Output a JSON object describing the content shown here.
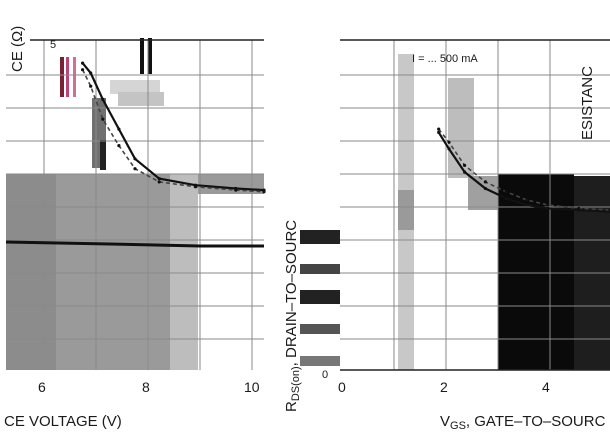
{
  "chart_data": [
    {
      "type": "line",
      "title": "",
      "xlabel": "CE VOLTAGE (V)",
      "ylabel": "CE (Ω)",
      "x_ticks": [
        "6",
        "8",
        "10"
      ],
      "y_tick_top": "5",
      "xlim": [
        4.8,
        11.2
      ],
      "ylim": [
        0,
        1
      ],
      "grid": true,
      "series": [
        {
          "x": [
            6.7,
            6.9,
            7.2,
            7.6,
            8.0,
            8.6,
            9.5,
            10.5,
            11.2
          ],
          "y": [
            0.93,
            0.9,
            0.82,
            0.73,
            0.64,
            0.58,
            0.56,
            0.55,
            0.545
          ]
        },
        {
          "x": [
            6.7,
            6.9,
            7.2,
            7.6,
            8.0,
            8.6,
            9.5,
            10.5,
            11.2
          ],
          "y": [
            0.91,
            0.86,
            0.76,
            0.68,
            0.61,
            0.57,
            0.555,
            0.545,
            0.54
          ]
        }
      ]
    },
    {
      "type": "line",
      "title": "",
      "xlabel": "V",
      "xlabel_sub": "GS",
      "xlabel_rest": ", GATE–TO–SOURC",
      "ylabel_main": "R",
      "ylabel_sub": "DS(on)",
      "ylabel_rest": ", DRAIN–TO–SOURC",
      "right_label": "ESISTANC",
      "annotation": "I  = ... 500 mA",
      "x_ticks": [
        "0",
        "2",
        "4"
      ],
      "y_tick_bottom": "0",
      "xlim": [
        0,
        5.2
      ],
      "ylim": [
        0,
        1
      ],
      "grid": true,
      "series": [
        {
          "x": [
            1.9,
            2.1,
            2.4,
            2.8,
            3.2,
            3.6,
            4.0,
            4.6,
            5.2
          ],
          "y": [
            0.72,
            0.67,
            0.6,
            0.55,
            0.52,
            0.5,
            0.49,
            0.485,
            0.48
          ]
        },
        {
          "x": [
            1.9,
            2.1,
            2.4,
            2.8,
            3.2,
            3.6,
            4.0,
            4.6,
            5.2
          ],
          "y": [
            0.73,
            0.69,
            0.62,
            0.57,
            0.54,
            0.515,
            0.5,
            0.49,
            0.485
          ]
        }
      ]
    }
  ]
}
